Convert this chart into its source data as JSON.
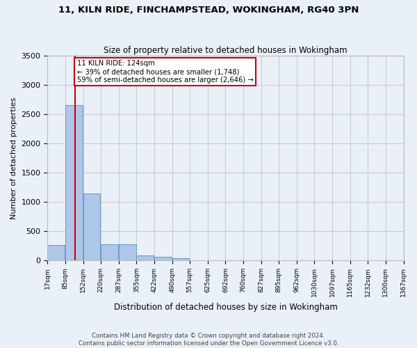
{
  "title": "11, KILN RIDE, FINCHAMPSTEAD, WOKINGHAM, RG40 3PN",
  "subtitle": "Size of property relative to detached houses in Wokingham",
  "xlabel": "Distribution of detached houses by size in Wokingham",
  "ylabel": "Number of detached properties",
  "footer_line1": "Contains HM Land Registry data © Crown copyright and database right 2024.",
  "footer_line2": "Contains public sector information licensed under the Open Government Licence v3.0.",
  "bar_heights": [
    270,
    2650,
    1140,
    280,
    275,
    90,
    65,
    38,
    0,
    0,
    0,
    0,
    0,
    0,
    0,
    0,
    0,
    0,
    0,
    0
  ],
  "bar_color": "#aec6e8",
  "bar_edge_color": "#6699cc",
  "grid_color": "#cccccc",
  "bg_color": "#eaf0f8",
  "red_line_after_bar": 1,
  "annotation_text": "11 KILN RIDE: 124sqm\n← 39% of detached houses are smaller (1,748)\n59% of semi-detached houses are larger (2,646) →",
  "annotation_box_color": "#ffffff",
  "annotation_box_edge_color": "#cc0000",
  "annotation_text_color": "#000000",
  "red_line_color": "#cc0000",
  "ylim": [
    0,
    3500
  ],
  "yticks": [
    0,
    500,
    1000,
    1500,
    2000,
    2500,
    3000,
    3500
  ],
  "tick_labels": [
    "17sqm",
    "85sqm",
    "152sqm",
    "220sqm",
    "287sqm",
    "355sqm",
    "422sqm",
    "490sqm",
    "557sqm",
    "625sqm",
    "692sqm",
    "760sqm",
    "827sqm",
    "895sqm",
    "962sqm",
    "1030sqm",
    "1097sqm",
    "1165sqm",
    "1232sqm",
    "1300sqm",
    "1367sqm"
  ]
}
